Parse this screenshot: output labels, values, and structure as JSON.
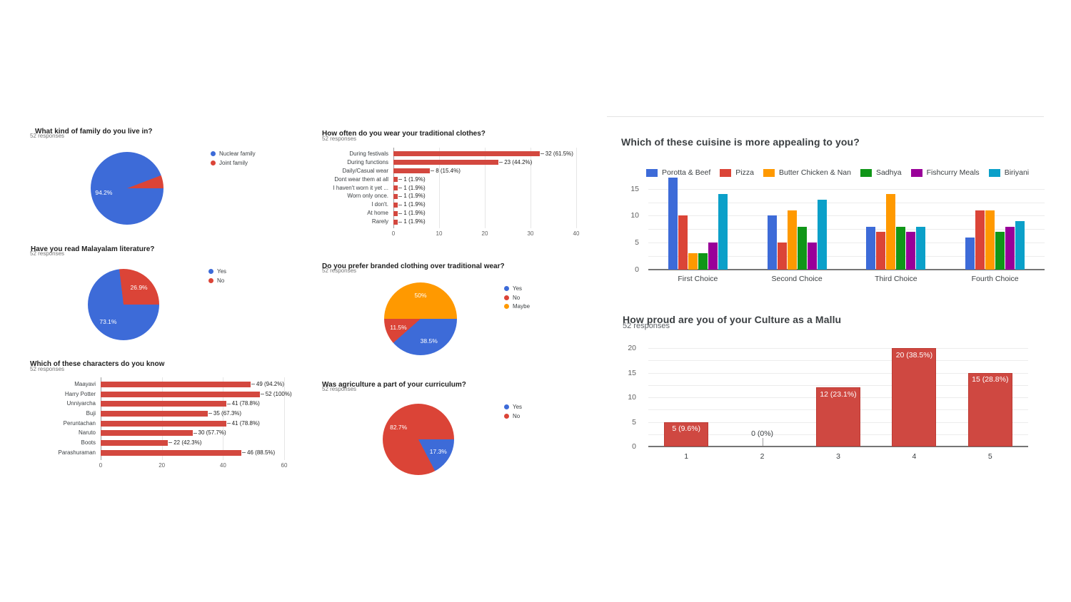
{
  "palette": {
    "blue": "#3d6bd8",
    "red": "#db4437",
    "bar_red": "#d3483f",
    "orange": "#ff9900",
    "green": "#109618",
    "purple": "#990099",
    "cyan": "#0ba0c9",
    "column_fill": "#cf4841",
    "column_border": "#bd3a33",
    "axis_line": "#757575",
    "gridline": "#ececec"
  },
  "chart_data": [
    {
      "type": "pie",
      "title": "What kind of family do you live in?",
      "responses": "52 responses",
      "legend_position": "right",
      "slices": [
        {
          "label": "Nuclear family",
          "pct": 94.2,
          "pct_label": "94.2%",
          "color": "#3d6bd8"
        },
        {
          "label": "Joint family",
          "pct": 5.8,
          "color": "#db4437"
        }
      ]
    },
    {
      "type": "pie",
      "title": "Have you read Malayalam literature?",
      "responses": "52 responses",
      "legend_position": "right",
      "slices": [
        {
          "label": "Yes",
          "pct": 73.1,
          "pct_label": "73.1%",
          "color": "#3d6bd8"
        },
        {
          "label": "No",
          "pct": 26.9,
          "pct_label": "26.9%",
          "color": "#db4437"
        }
      ]
    },
    {
      "type": "bar",
      "orientation": "horizontal",
      "title": "Which of these characters do you know",
      "responses": "52 responses",
      "color": "#d3483f",
      "categories": [
        "Maayavi",
        "Harry Potter",
        "Unniyarcha",
        "Buji",
        "Peruntachan",
        "Naruto",
        "Boots",
        "Parashuraman"
      ],
      "values": [
        49,
        52,
        41,
        35,
        41,
        30,
        22,
        46
      ],
      "value_labels": [
        "49 (94.2%)",
        "52 (100%)",
        "41 (78.8%)",
        "35 (67.3%)",
        "41 (78.8%)",
        "30 (57.7%)",
        "22 (42.3%)",
        "46 (88.5%)"
      ],
      "xticks": [
        0,
        20,
        40,
        60
      ],
      "xmax": 60,
      "grid": true
    },
    {
      "type": "bar",
      "orientation": "horizontal",
      "title": "How often do you wear your traditional clothes?",
      "responses": "52 responses",
      "color": "#d3483f",
      "categories": [
        "During festivals",
        "During functions",
        "Daily/Casual wear",
        "Dont wear them at all",
        "I haven't worn it yet ...",
        "Worn only once.",
        "I don't.",
        "At home",
        "Rarely"
      ],
      "values": [
        32,
        23,
        8,
        1,
        1,
        1,
        1,
        1,
        1
      ],
      "value_labels": [
        "32 (61.5%)",
        "23 (44.2%)",
        "8 (15.4%)",
        "1 (1.9%)",
        "1 (1.9%)",
        "1 (1.9%)",
        "1 (1.9%)",
        "1 (1.9%)",
        "1 (1.9%)"
      ],
      "xticks": [
        0,
        10,
        20,
        30,
        40
      ],
      "xmax": 40,
      "grid": true
    },
    {
      "type": "pie",
      "title": "Do you prefer branded clothing over traditional wear?",
      "responses": "52 responses",
      "legend_position": "right",
      "slices": [
        {
          "label": "Yes",
          "pct": 38.5,
          "pct_label": "38.5%",
          "color": "#3d6bd8"
        },
        {
          "label": "No",
          "pct": 11.5,
          "pct_label": "11.5%",
          "color": "#db4437"
        },
        {
          "label": "Maybe",
          "pct": 50,
          "pct_label": "50%",
          "color": "#ff9900"
        }
      ]
    },
    {
      "type": "pie",
      "title": "Was agriculture a part of your curriculum?",
      "responses": "52 responses",
      "legend_position": "right",
      "slices": [
        {
          "label": "Yes",
          "pct": 17.3,
          "pct_label": "17.3%",
          "color": "#3d6bd8"
        },
        {
          "label": "No",
          "pct": 82.7,
          "pct_label": "82.7%",
          "color": "#db4437"
        }
      ]
    },
    {
      "type": "bar",
      "orientation": "vertical",
      "grouped": true,
      "title": "Which of these cuisine is more appealing to you?",
      "legend_position": "top",
      "categories": [
        "First Choice",
        "Second Choice",
        "Third Choice",
        "Fourth Choice"
      ],
      "series": [
        {
          "name": "Porotta & Beef",
          "color": "#3d6bd8",
          "values": [
            17,
            10,
            8,
            6
          ]
        },
        {
          "name": "Pizza",
          "color": "#db4437",
          "values": [
            10,
            5,
            7,
            11
          ]
        },
        {
          "name": "Butter Chicken & Nan",
          "color": "#ff9900",
          "values": [
            3,
            11,
            14,
            11
          ]
        },
        {
          "name": "Sadhya",
          "color": "#109618",
          "values": [
            3,
            8,
            8,
            7
          ]
        },
        {
          "name": "Fishcurry Meals",
          "color": "#990099",
          "values": [
            5,
            5,
            7,
            8
          ]
        },
        {
          "name": "Biriyani",
          "color": "#0ba0c9",
          "values": [
            14,
            13,
            8,
            9
          ]
        }
      ],
      "yticks": [
        0,
        5,
        10,
        15
      ],
      "ylim": [
        0,
        18
      ],
      "grid": true
    },
    {
      "type": "bar",
      "orientation": "vertical",
      "title": "How proud are you of your Culture as a Mallu",
      "responses": "52 responses",
      "fill": "#cf4841",
      "border": "#bd3a33",
      "categories": [
        "1",
        "2",
        "3",
        "4",
        "5"
      ],
      "values": [
        5,
        0,
        12,
        20,
        15
      ],
      "value_labels": [
        "5 (9.6%)",
        "0 (0%)",
        "12 (23.1%)",
        "20 (38.5%)",
        "15 (28.8%)"
      ],
      "yticks": [
        0,
        5,
        10,
        15,
        20
      ],
      "ylim": [
        0,
        20
      ],
      "grid": true
    }
  ]
}
